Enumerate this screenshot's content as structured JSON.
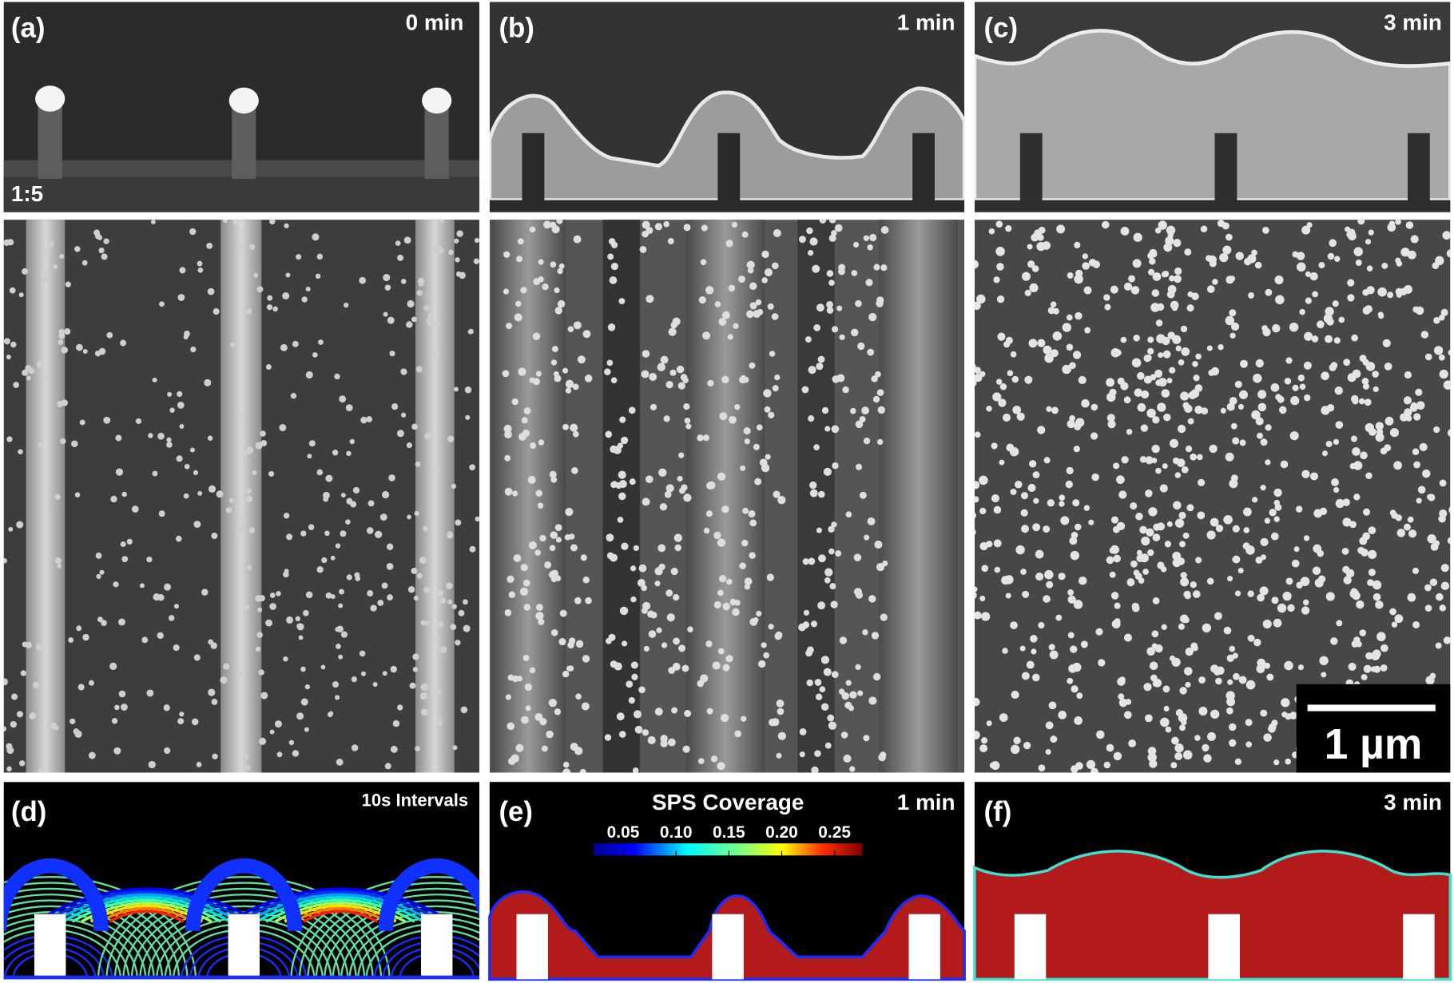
{
  "panels": [
    {
      "label": "(a)",
      "time": "0 min",
      "ratio": "1:5"
    },
    {
      "label": "(b)",
      "time": "1 min"
    },
    {
      "label": "(c)",
      "time": "3 min",
      "scale_bar": "1 µm"
    },
    {
      "label": "(d)",
      "note": "10s Intervals"
    },
    {
      "label": "(e)",
      "time": "1 min",
      "colorbar": {
        "title": "SPS Coverage",
        "ticks": [
          "0.05",
          "0.10",
          "0.15",
          "0.20",
          "0.25"
        ]
      }
    },
    {
      "label": "(f)",
      "time": "3 min"
    }
  ]
}
